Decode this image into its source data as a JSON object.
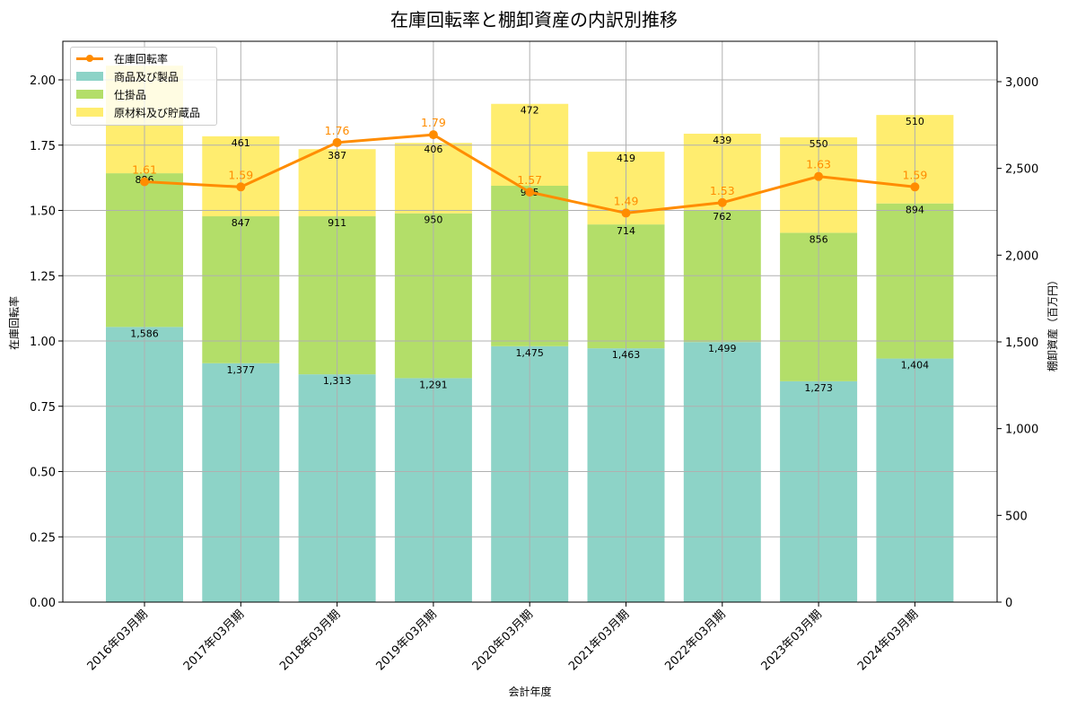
{
  "title": "在庫回転率と棚卸資産の内訳別推移",
  "legend": {
    "items": [
      {
        "label": "在庫回転率",
        "type": "line",
        "color": "#ff8c00"
      },
      {
        "label": "商品及び製品",
        "type": "bar",
        "color": "#8dd3c7"
      },
      {
        "label": "仕掛品",
        "type": "bar",
        "color": "#b3de69"
      },
      {
        "label": "原材料及び貯蔵品",
        "type": "bar",
        "color": "#ffed6f"
      }
    ]
  },
  "axes": {
    "xlabel": "会計年度",
    "ylabel_left": "在庫回転率",
    "ylabel_right": "棚卸資産（百万円）",
    "left_ticks": [
      "0.00",
      "0.25",
      "0.50",
      "0.75",
      "1.00",
      "1.25",
      "1.50",
      "1.75",
      "2.00"
    ],
    "right_ticks": [
      "0",
      "500",
      "1,000",
      "1,500",
      "2,000",
      "2,500",
      "3,000"
    ]
  },
  "chart_data": {
    "type": "bar",
    "title": "在庫回転率と棚卸資産の内訳別推移",
    "xlabel": "会計年度",
    "ylabel": "在庫回転率",
    "ylabel_secondary": "棚卸資産（百万円）",
    "stacked": true,
    "grid": true,
    "legend_position": "upper left",
    "ylim": [
      0,
      2.15
    ],
    "ylim_secondary": [
      0,
      3225
    ],
    "categories": [
      "2016年03月期",
      "2017年03月期",
      "2018年03月期",
      "2019年03月期",
      "2020年03月期",
      "2021年03月期",
      "2022年03月期",
      "2023年03月期",
      "2024年03月期"
    ],
    "series": [
      {
        "name": "商品及び製品",
        "type": "bar",
        "axis": "right",
        "color": "#8dd3c7",
        "values": [
          1586,
          1377,
          1313,
          1291,
          1475,
          1463,
          1499,
          1273,
          1404
        ]
      },
      {
        "name": "仕掛品",
        "type": "bar",
        "axis": "right",
        "color": "#b3de69",
        "values": [
          886,
          847,
          911,
          950,
          925,
          714,
          762,
          856,
          894
        ]
      },
      {
        "name": "原材料及び貯蔵品",
        "type": "bar",
        "axis": "right",
        "color": "#ffed6f",
        "values": [
          620,
          461,
          387,
          406,
          472,
          419,
          439,
          550,
          510
        ]
      },
      {
        "name": "在庫回転率",
        "type": "line",
        "axis": "left",
        "color": "#ff8c00",
        "values": [
          1.61,
          1.59,
          1.76,
          1.79,
          1.57,
          1.49,
          1.53,
          1.63,
          1.59
        ]
      }
    ],
    "bar_labels": {
      "product": [
        "1,586",
        "1,377",
        "1,313",
        "1,291",
        "1,475",
        "1,463",
        "1,499",
        "1,273",
        "1,404"
      ],
      "wip": [
        "886",
        "847",
        "911",
        "950",
        "925",
        "714",
        "762",
        "856",
        "894"
      ],
      "raw": [
        "",
        "461",
        "387",
        "406",
        "472",
        "419",
        "439",
        "550",
        "510"
      ],
      "rate": [
        "1.61",
        "1.59",
        "1.76",
        "1.79",
        "1.57",
        "1.49",
        "1.53",
        "1.63",
        "1.59"
      ]
    }
  }
}
